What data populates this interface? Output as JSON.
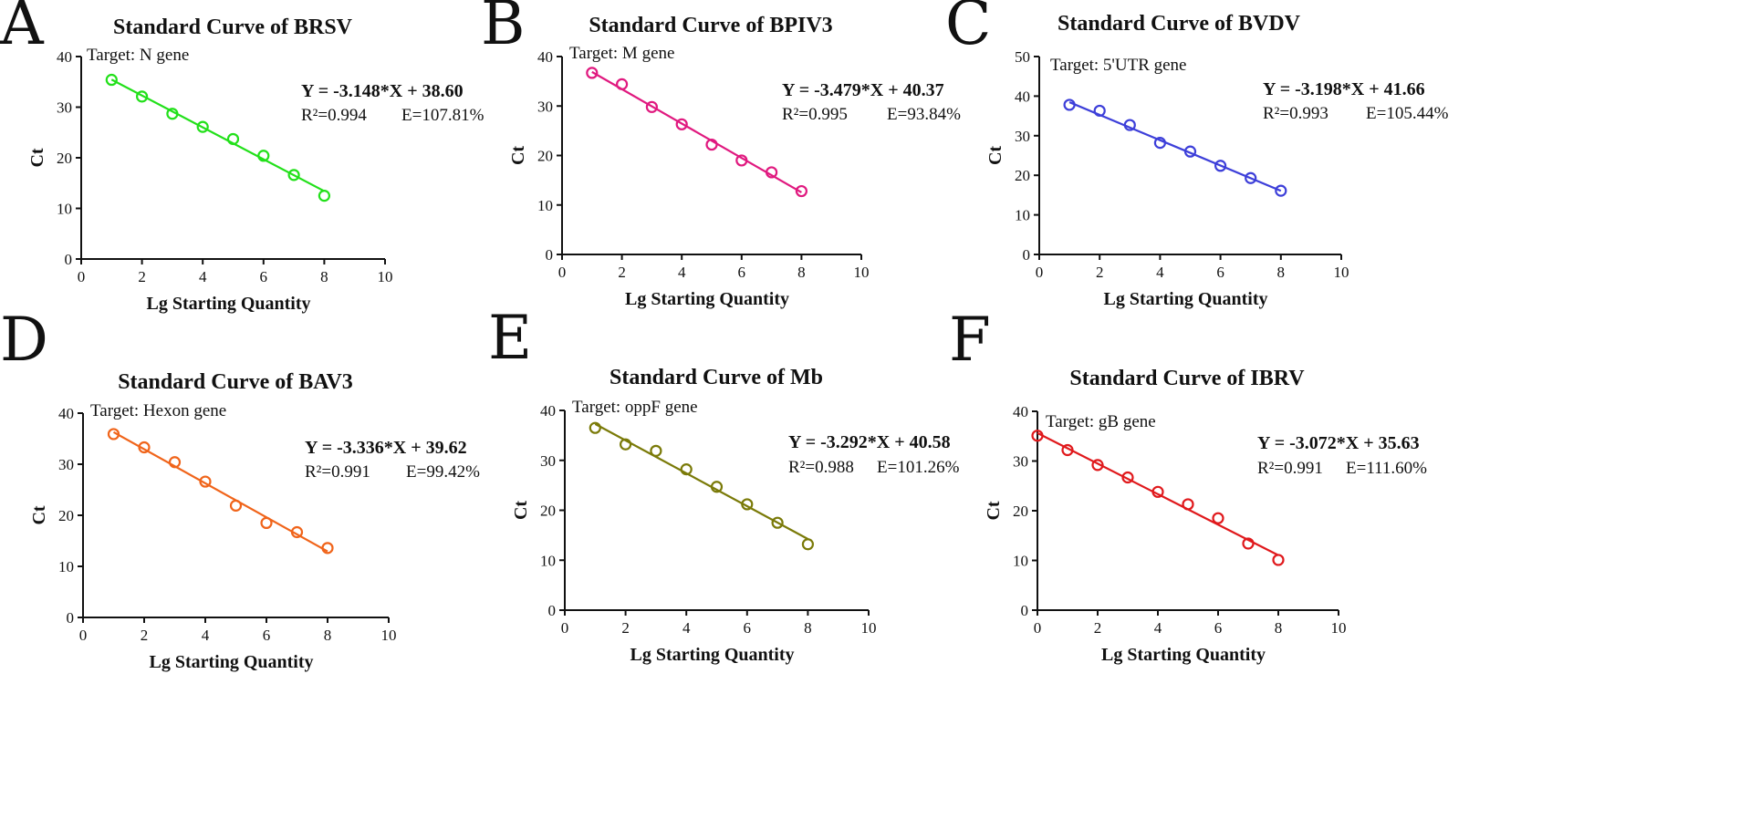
{
  "chart_data": [
    {
      "type": "scatter",
      "panel": "A",
      "title": "Standard Curve of BRSV",
      "target": "Target: N gene",
      "equation": "Y = -3.148*X + 38.60",
      "r2": "R²=0.994",
      "efficiency": "E=107.81%",
      "xlabel": "Lg Starting Quantity",
      "ylabel": "Ct",
      "xlim": [
        0,
        10
      ],
      "ylim": [
        0,
        40
      ],
      "xticks": [
        0,
        2,
        4,
        6,
        8,
        10
      ],
      "yticks": [
        0,
        10,
        20,
        30,
        40
      ],
      "color": "#22e01a",
      "fit": {
        "slope": -3.148,
        "intercept": 38.6,
        "x_range": [
          1,
          8
        ]
      },
      "x": [
        1,
        2,
        3,
        4,
        5,
        6,
        7,
        8
      ],
      "y": [
        35.4,
        32.1,
        28.7,
        26.1,
        23.7,
        20.4,
        16.6,
        12.5
      ]
    },
    {
      "type": "scatter",
      "panel": "B",
      "title": "Standard Curve of BPIV3",
      "target": "Target: M gene",
      "equation": "Y = -3.479*X + 40.37",
      "r2": "R²=0.995",
      "efficiency": "E=93.84%",
      "xlabel": "Lg Starting Quantity",
      "ylabel": "Ct",
      "xlim": [
        0,
        10
      ],
      "ylim": [
        0,
        40
      ],
      "xticks": [
        0,
        2,
        4,
        6,
        8,
        10
      ],
      "yticks": [
        0,
        10,
        20,
        30,
        40
      ],
      "color": "#e0197f",
      "fit": {
        "slope": -3.479,
        "intercept": 40.37,
        "x_range": [
          1,
          8
        ]
      },
      "x": [
        1,
        2,
        3,
        4,
        5,
        6,
        7,
        8
      ],
      "y": [
        36.7,
        34.4,
        29.8,
        26.3,
        22.2,
        19.0,
        16.6,
        12.8
      ]
    },
    {
      "type": "scatter",
      "panel": "C",
      "title": "Standard Curve of BVDV",
      "target": "Target: 5'UTR gene",
      "equation": "Y = -3.198*X + 41.66",
      "r2": "R²=0.993",
      "efficiency": "E=105.44%",
      "xlabel": "Lg Starting Quantity",
      "ylabel": "Ct",
      "xlim": [
        0,
        10
      ],
      "ylim": [
        0,
        50
      ],
      "xticks": [
        0,
        2,
        4,
        6,
        8,
        10
      ],
      "yticks": [
        0,
        10,
        20,
        30,
        40,
        50
      ],
      "color": "#3d3fd9",
      "fit": {
        "slope": -3.198,
        "intercept": 41.66,
        "x_range": [
          1,
          8
        ]
      },
      "x": [
        1,
        2,
        3,
        4,
        5,
        6,
        7,
        8
      ],
      "y": [
        37.8,
        36.3,
        32.7,
        28.2,
        26.0,
        22.4,
        19.3,
        16.1
      ]
    },
    {
      "type": "scatter",
      "panel": "D",
      "title": "Standard Curve of BAV3",
      "target": "Target: Hexon gene",
      "equation": "Y = -3.336*X + 39.62",
      "r2": "R²=0.991",
      "efficiency": "E=99.42%",
      "xlabel": "Lg Starting Quantity",
      "ylabel": "Ct",
      "xlim": [
        0,
        10
      ],
      "ylim": [
        0,
        40
      ],
      "xticks": [
        0,
        2,
        4,
        6,
        8,
        10
      ],
      "yticks": [
        0,
        10,
        20,
        30,
        40
      ],
      "color": "#f0641a",
      "fit": {
        "slope": -3.336,
        "intercept": 39.62,
        "x_range": [
          1,
          8
        ]
      },
      "x": [
        1,
        2,
        3,
        4,
        5,
        6,
        7,
        8
      ],
      "y": [
        35.9,
        33.3,
        30.4,
        26.6,
        21.9,
        18.5,
        16.7,
        13.6
      ]
    },
    {
      "type": "scatter",
      "panel": "E",
      "title": "Standard Curve of Mb",
      "target": "Target: oppF gene",
      "equation": "Y = -3.292*X + 40.58",
      "r2": "R²=0.988",
      "efficiency": "E=101.26%",
      "xlabel": "Lg Starting Quantity",
      "ylabel": "Ct",
      "xlim": [
        0,
        10
      ],
      "ylim": [
        0,
        40
      ],
      "xticks": [
        0,
        2,
        4,
        6,
        8,
        10
      ],
      "yticks": [
        0,
        10,
        20,
        30,
        40
      ],
      "color": "#7a7a08",
      "fit": {
        "slope": -3.292,
        "intercept": 40.58,
        "x_range": [
          1,
          8
        ]
      },
      "x": [
        1,
        2,
        3,
        4,
        5,
        6,
        7,
        8
      ],
      "y": [
        36.5,
        33.2,
        31.9,
        28.2,
        24.7,
        21.2,
        17.5,
        13.2
      ]
    },
    {
      "type": "scatter",
      "panel": "F",
      "title": "Standard Curve of IBRV",
      "target": "Target: gB gene",
      "equation": "Y = -3.072*X + 35.63",
      "r2": "R²=0.991",
      "efficiency": "E=111.60%",
      "xlabel": "Lg Starting Quantity",
      "ylabel": "Ct",
      "xlim": [
        0,
        10
      ],
      "ylim": [
        0,
        40
      ],
      "xticks": [
        0,
        2,
        4,
        6,
        8,
        10
      ],
      "yticks": [
        0,
        10,
        20,
        30,
        40
      ],
      "color": "#e0191c",
      "fit": {
        "slope": -3.072,
        "intercept": 35.63,
        "x_range": [
          0,
          8
        ]
      },
      "x": [
        0,
        1,
        2,
        3,
        4,
        5,
        6,
        7,
        8
      ],
      "y": [
        35.1,
        32.2,
        29.2,
        26.7,
        23.8,
        21.3,
        18.5,
        13.4,
        10.1
      ]
    }
  ]
}
